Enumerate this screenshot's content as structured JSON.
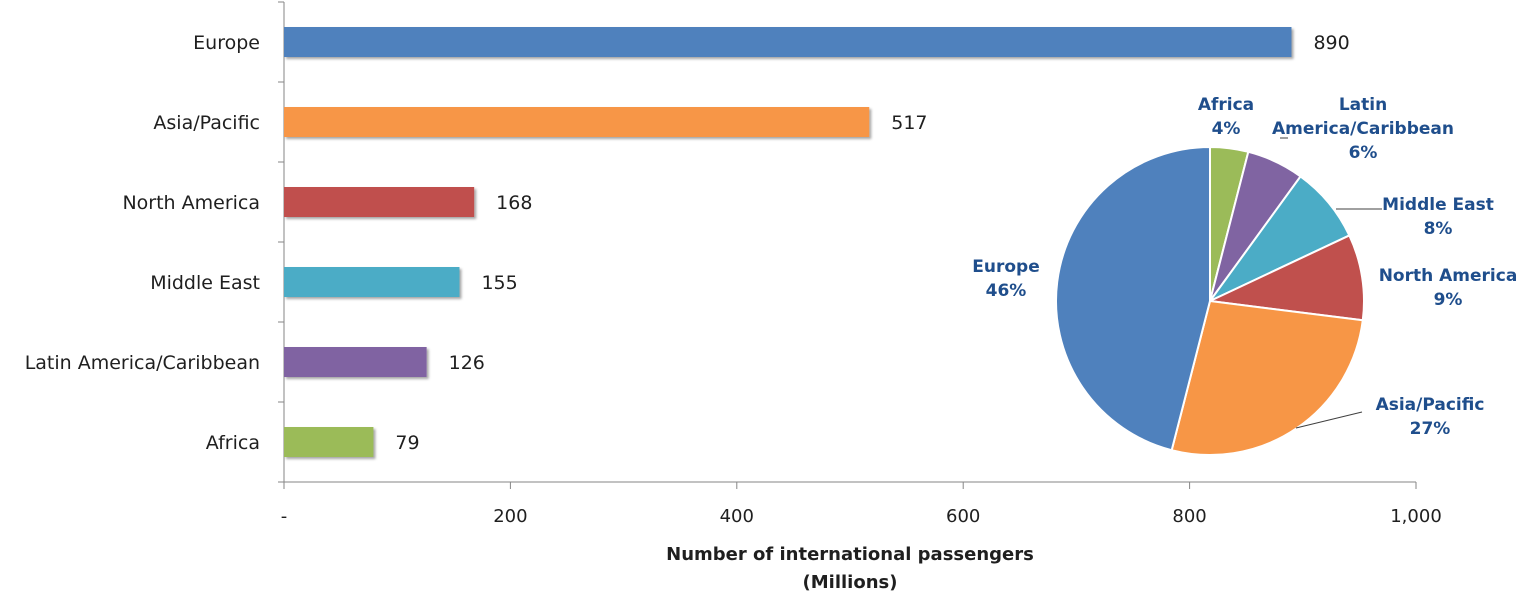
{
  "chart_data": [
    {
      "type": "bar",
      "orientation": "horizontal",
      "categories": [
        "Europe",
        "Asia/Pacific",
        "North America",
        "Middle East",
        "Latin America/Caribbean",
        "Africa"
      ],
      "values": [
        890,
        517,
        168,
        155,
        126,
        79
      ],
      "value_labels": [
        "890",
        "517",
        "168",
        "155",
        "126",
        "79"
      ],
      "colors": [
        "#4f81bd",
        "#f79646",
        "#c0504d",
        "#4bacc6",
        "#8064a2",
        "#9bbb59"
      ],
      "xlim": [
        0,
        1000
      ],
      "xticks": [
        0,
        200,
        400,
        600,
        800,
        1000
      ],
      "xtick_labels": [
        "-",
        "200",
        "400",
        "600",
        "800",
        "1,000"
      ],
      "xlabel_line1": "Number of international passengers",
      "xlabel_line2": "(Millions)",
      "grid": false
    },
    {
      "type": "pie",
      "slices": [
        {
          "name": "Africa",
          "percent": 4,
          "label_lines": [
            "Africa",
            "4%"
          ],
          "color": "#9bbb59"
        },
        {
          "name": "Latin America/Caribbean",
          "percent": 6,
          "label_lines": [
            "Latin",
            "America/Caribbean",
            "6%"
          ],
          "color": "#8064a2"
        },
        {
          "name": "Middle East",
          "percent": 8,
          "label_lines": [
            "Middle East",
            "8%"
          ],
          "color": "#4bacc6"
        },
        {
          "name": "North America",
          "percent": 9,
          "label_lines": [
            "North America",
            "9%"
          ],
          "color": "#c0504d"
        },
        {
          "name": "Asia/Pacific",
          "percent": 27,
          "label_lines": [
            "Asia/Pacific",
            "27%"
          ],
          "color": "#f79646"
        },
        {
          "name": "Europe",
          "percent": 46,
          "label_lines": [
            "Europe",
            "46%"
          ],
          "color": "#4f81bd"
        }
      ],
      "start": "12 o'clock",
      "direction": "clockwise",
      "label_color": "#1f4e8c"
    }
  ]
}
